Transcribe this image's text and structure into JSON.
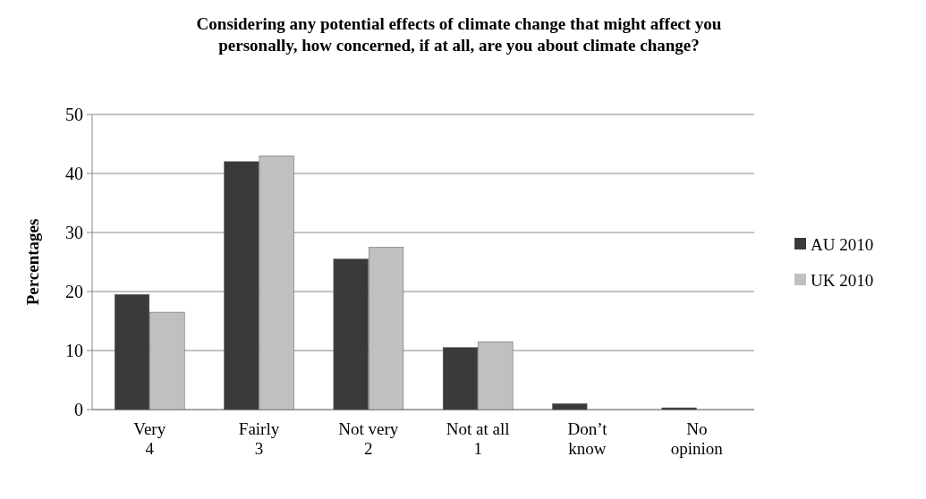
{
  "chart_data": {
    "type": "bar",
    "title": "Considering any potential effects of climate change that might affect you personally, how concerned, if at all, are you about climate change?",
    "ylabel": "Percentages",
    "categories": [
      "Very\n4",
      "Fairly\n3",
      "Not very\n2",
      "Not at all\n1",
      "Don’t\nknow",
      "No\nopinion"
    ],
    "series": [
      {
        "name": "AU 2010",
        "color": "#3a3a3a",
        "values": [
          19.5,
          42,
          25.5,
          10.5,
          1,
          0.3
        ]
      },
      {
        "name": "UK 2010",
        "color": "#c0c0c0",
        "values": [
          16.5,
          43,
          27.5,
          11.5,
          0,
          0
        ]
      }
    ],
    "ylim": [
      0,
      50
    ],
    "yticks": [
      0,
      10,
      20,
      30,
      40,
      50
    ],
    "grid": "y",
    "legend": "right"
  }
}
